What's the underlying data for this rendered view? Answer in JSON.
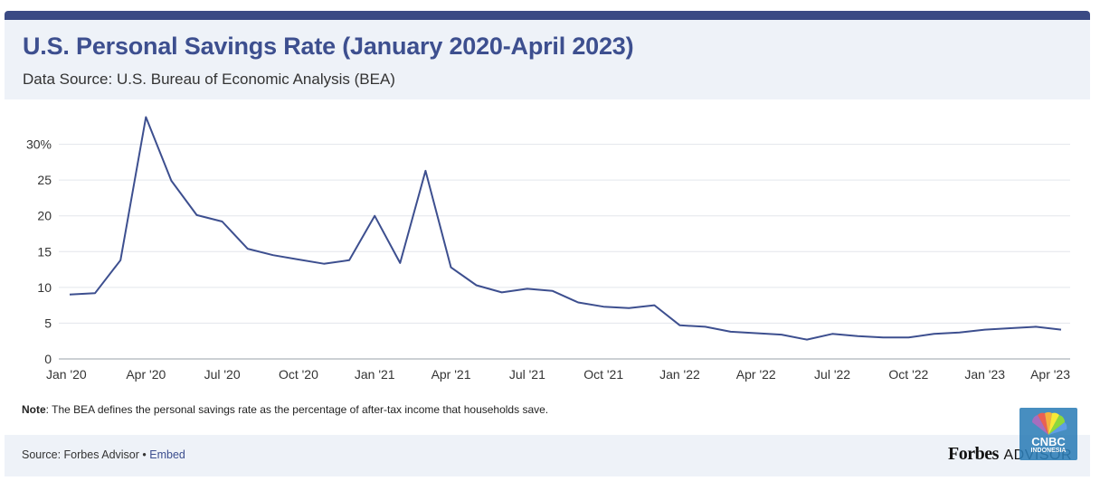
{
  "header": {
    "title": "U.S. Personal Savings Rate (January 2020-April 2023)",
    "subtitle": "Data Source: U.S. Bureau of Economic Analysis (BEA)"
  },
  "note": {
    "label": "Note",
    "text": ": The BEA defines the personal savings rate as the percentage of after-tax income that households save."
  },
  "footer": {
    "source_prefix": "Source: Forbes Advisor • ",
    "embed_label": "Embed",
    "brand_forbes": "Forbes",
    "brand_advisor": "ADVISOR"
  },
  "watermark": {
    "line1": "CNBC",
    "line2": "INDONESIA"
  },
  "colors": {
    "line": "#3d4f8f",
    "header_bg": "#eef2f8",
    "top_bar": "#3a4a84",
    "grid": "#e3e6ec"
  },
  "chart_data": {
    "type": "line",
    "title": "U.S. Personal Savings Rate (January 2020-April 2023)",
    "subtitle": "Data Source: U.S. Bureau of Economic Analysis (BEA)",
    "x": [
      "2020-01",
      "2020-02",
      "2020-03",
      "2020-04",
      "2020-05",
      "2020-06",
      "2020-07",
      "2020-08",
      "2020-09",
      "2020-10",
      "2020-11",
      "2020-12",
      "2021-01",
      "2021-02",
      "2021-03",
      "2021-04",
      "2021-05",
      "2021-06",
      "2021-07",
      "2021-08",
      "2021-09",
      "2021-10",
      "2021-11",
      "2021-12",
      "2022-01",
      "2022-02",
      "2022-03",
      "2022-04",
      "2022-05",
      "2022-06",
      "2022-07",
      "2022-08",
      "2022-09",
      "2022-10",
      "2022-11",
      "2022-12",
      "2023-01",
      "2023-02",
      "2023-03",
      "2023-04"
    ],
    "series": [
      {
        "values": [
          9.0,
          9.2,
          13.8,
          33.8,
          24.9,
          20.1,
          19.2,
          15.4,
          14.5,
          13.9,
          13.3,
          13.8,
          20.0,
          13.4,
          26.3,
          12.8,
          10.3,
          9.3,
          9.8,
          9.5,
          7.9,
          7.3,
          7.1,
          7.5,
          4.7,
          4.5,
          3.8,
          3.6,
          3.4,
          2.7,
          3.5,
          3.2,
          3.0,
          3.0,
          3.5,
          3.7,
          4.1,
          4.3,
          4.5,
          4.1
        ]
      }
    ],
    "x_tick_labels": [
      "Jan '20",
      "Apr '20",
      "Jul '20",
      "Oct '20",
      "Jan '21",
      "Apr '21",
      "Jul '21",
      "Oct '21",
      "Jan '22",
      "Apr '22",
      "Jul '22",
      "Oct '22",
      "Jan '23",
      "Apr '23"
    ],
    "x_tick_index": [
      0,
      3,
      6,
      9,
      12,
      15,
      18,
      21,
      24,
      27,
      30,
      33,
      36,
      39
    ],
    "y_ticks": [
      0,
      5,
      10,
      15,
      20,
      25,
      30
    ],
    "y_tick_labels": [
      "0",
      "5",
      "10",
      "15",
      "20",
      "25",
      "30%"
    ],
    "ylim": [
      0,
      35
    ],
    "grid": true,
    "legend": "none"
  }
}
